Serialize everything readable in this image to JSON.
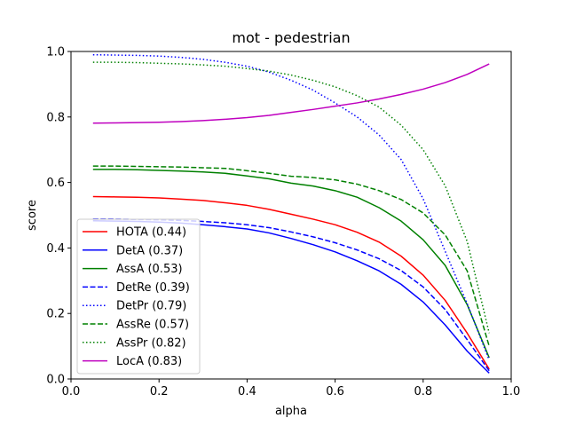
{
  "chart_data": {
    "type": "line",
    "title": "mot - pedestrian",
    "xlabel": "alpha",
    "ylabel": "score",
    "xlim": [
      0.0,
      1.0
    ],
    "ylim": [
      0.0,
      1.0
    ],
    "xticks": [
      "0.0",
      "0.2",
      "0.4",
      "0.6",
      "0.8",
      "1.0"
    ],
    "yticks": [
      "0.0",
      "0.2",
      "0.4",
      "0.6",
      "0.8",
      "1.0"
    ],
    "grid": false,
    "legend_position": "lower-left",
    "x": [
      0.05,
      0.1,
      0.15,
      0.2,
      0.25,
      0.3,
      0.35,
      0.4,
      0.45,
      0.5,
      0.55,
      0.6,
      0.65,
      0.7,
      0.75,
      0.8,
      0.85,
      0.9,
      0.95
    ],
    "series": [
      {
        "name": "HOTA (0.44)",
        "color": "#ff0000",
        "style": "solid",
        "values": [
          0.557,
          0.556,
          0.555,
          0.553,
          0.549,
          0.545,
          0.538,
          0.53,
          0.518,
          0.503,
          0.488,
          0.471,
          0.448,
          0.418,
          0.375,
          0.317,
          0.24,
          0.14,
          0.03
        ]
      },
      {
        "name": "DetA (0.37)",
        "color": "#0000ff",
        "style": "solid",
        "values": [
          0.483,
          0.482,
          0.481,
          0.479,
          0.476,
          0.471,
          0.465,
          0.458,
          0.446,
          0.429,
          0.41,
          0.388,
          0.361,
          0.33,
          0.289,
          0.235,
          0.165,
          0.085,
          0.018
        ]
      },
      {
        "name": "AssA (0.53)",
        "color": "#008000",
        "style": "solid",
        "values": [
          0.64,
          0.64,
          0.639,
          0.637,
          0.635,
          0.632,
          0.628,
          0.62,
          0.611,
          0.598,
          0.589,
          0.575,
          0.555,
          0.523,
          0.482,
          0.425,
          0.347,
          0.227,
          0.065
        ]
      },
      {
        "name": "DetRe (0.39)",
        "color": "#0000ff",
        "style": "dashed",
        "values": [
          0.488,
          0.488,
          0.487,
          0.486,
          0.484,
          0.481,
          0.477,
          0.471,
          0.462,
          0.449,
          0.434,
          0.416,
          0.394,
          0.367,
          0.331,
          0.281,
          0.212,
          0.12,
          0.025
        ]
      },
      {
        "name": "DetPr (0.79)",
        "color": "#0000ff",
        "style": "dotted",
        "values": [
          0.99,
          0.989,
          0.988,
          0.986,
          0.982,
          0.976,
          0.967,
          0.955,
          0.937,
          0.912,
          0.882,
          0.843,
          0.8,
          0.745,
          0.67,
          0.55,
          0.39,
          0.23,
          0.058
        ]
      },
      {
        "name": "AssRe (0.57)",
        "color": "#008000",
        "style": "dashed",
        "values": [
          0.65,
          0.65,
          0.649,
          0.648,
          0.647,
          0.645,
          0.643,
          0.636,
          0.628,
          0.619,
          0.615,
          0.608,
          0.595,
          0.575,
          0.548,
          0.507,
          0.44,
          0.33,
          0.1
        ]
      },
      {
        "name": "AssPr (0.82)",
        "color": "#008000",
        "style": "dotted",
        "values": [
          0.967,
          0.967,
          0.966,
          0.964,
          0.962,
          0.959,
          0.955,
          0.948,
          0.94,
          0.928,
          0.912,
          0.892,
          0.865,
          0.83,
          0.775,
          0.7,
          0.59,
          0.42,
          0.14
        ]
      },
      {
        "name": "LocA (0.83)",
        "color": "#bf00bf",
        "style": "solid",
        "values": [
          0.781,
          0.782,
          0.783,
          0.784,
          0.786,
          0.789,
          0.793,
          0.798,
          0.805,
          0.814,
          0.823,
          0.833,
          0.843,
          0.855,
          0.869,
          0.885,
          0.905,
          0.93,
          0.962
        ]
      }
    ]
  }
}
